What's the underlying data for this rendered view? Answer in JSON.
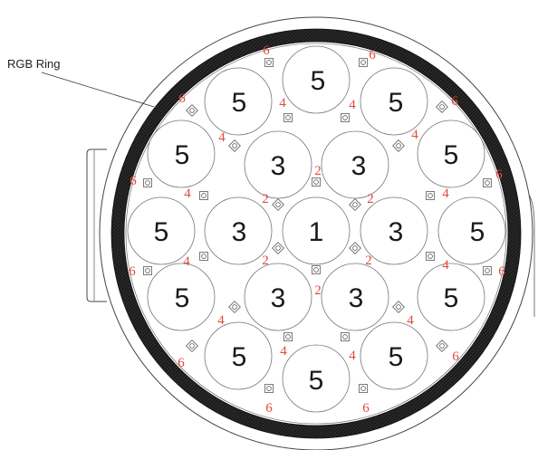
{
  "ring_label": "RGB Ring",
  "colors": {
    "outline": "#333333",
    "ring": "#1c1c1c",
    "zone_label": "#e0483b",
    "lens_label": "#1a1a1a"
  },
  "lenses": [
    {
      "id": "c",
      "label": "1"
    },
    {
      "id": "i1",
      "label": "3"
    },
    {
      "id": "i2",
      "label": "3"
    },
    {
      "id": "i3",
      "label": "3"
    },
    {
      "id": "i4",
      "label": "3"
    },
    {
      "id": "i5",
      "label": "3"
    },
    {
      "id": "i6",
      "label": "3"
    },
    {
      "id": "o1",
      "label": "5"
    },
    {
      "id": "o2",
      "label": "5"
    },
    {
      "id": "o3",
      "label": "5"
    },
    {
      "id": "o4",
      "label": "5"
    },
    {
      "id": "o5",
      "label": "5"
    },
    {
      "id": "o6",
      "label": "5"
    },
    {
      "id": "o7",
      "label": "5"
    },
    {
      "id": "o8",
      "label": "5"
    },
    {
      "id": "o9",
      "label": "5"
    },
    {
      "id": "o10",
      "label": "5"
    },
    {
      "id": "o11",
      "label": "5"
    },
    {
      "id": "o12",
      "label": "5"
    }
  ],
  "zone_labels": [
    {
      "id": "z2a",
      "label": "2"
    },
    {
      "id": "z2b",
      "label": "2"
    },
    {
      "id": "z2c",
      "label": "2"
    },
    {
      "id": "z2d",
      "label": "2"
    },
    {
      "id": "z2e",
      "label": "2"
    },
    {
      "id": "z2f",
      "label": "2"
    },
    {
      "id": "z4a",
      "label": "4"
    },
    {
      "id": "z4b",
      "label": "4"
    },
    {
      "id": "z4c",
      "label": "4"
    },
    {
      "id": "z4d",
      "label": "4"
    },
    {
      "id": "z4e",
      "label": "4"
    },
    {
      "id": "z4f",
      "label": "4"
    },
    {
      "id": "z4g",
      "label": "4"
    },
    {
      "id": "z4h",
      "label": "4"
    },
    {
      "id": "z4i",
      "label": "4"
    },
    {
      "id": "z4j",
      "label": "4"
    },
    {
      "id": "z4k",
      "label": "4"
    },
    {
      "id": "z4l",
      "label": "4"
    },
    {
      "id": "z6a",
      "label": "6"
    },
    {
      "id": "z6b",
      "label": "6"
    },
    {
      "id": "z6c",
      "label": "6"
    },
    {
      "id": "z6d",
      "label": "6"
    },
    {
      "id": "z6e",
      "label": "6"
    },
    {
      "id": "z6f",
      "label": "6"
    },
    {
      "id": "z6g",
      "label": "6"
    },
    {
      "id": "z6h",
      "label": "6"
    },
    {
      "id": "z6i",
      "label": "6"
    },
    {
      "id": "z6j",
      "label": "6"
    },
    {
      "id": "z6k",
      "label": "6"
    },
    {
      "id": "z6l",
      "label": "6"
    }
  ]
}
